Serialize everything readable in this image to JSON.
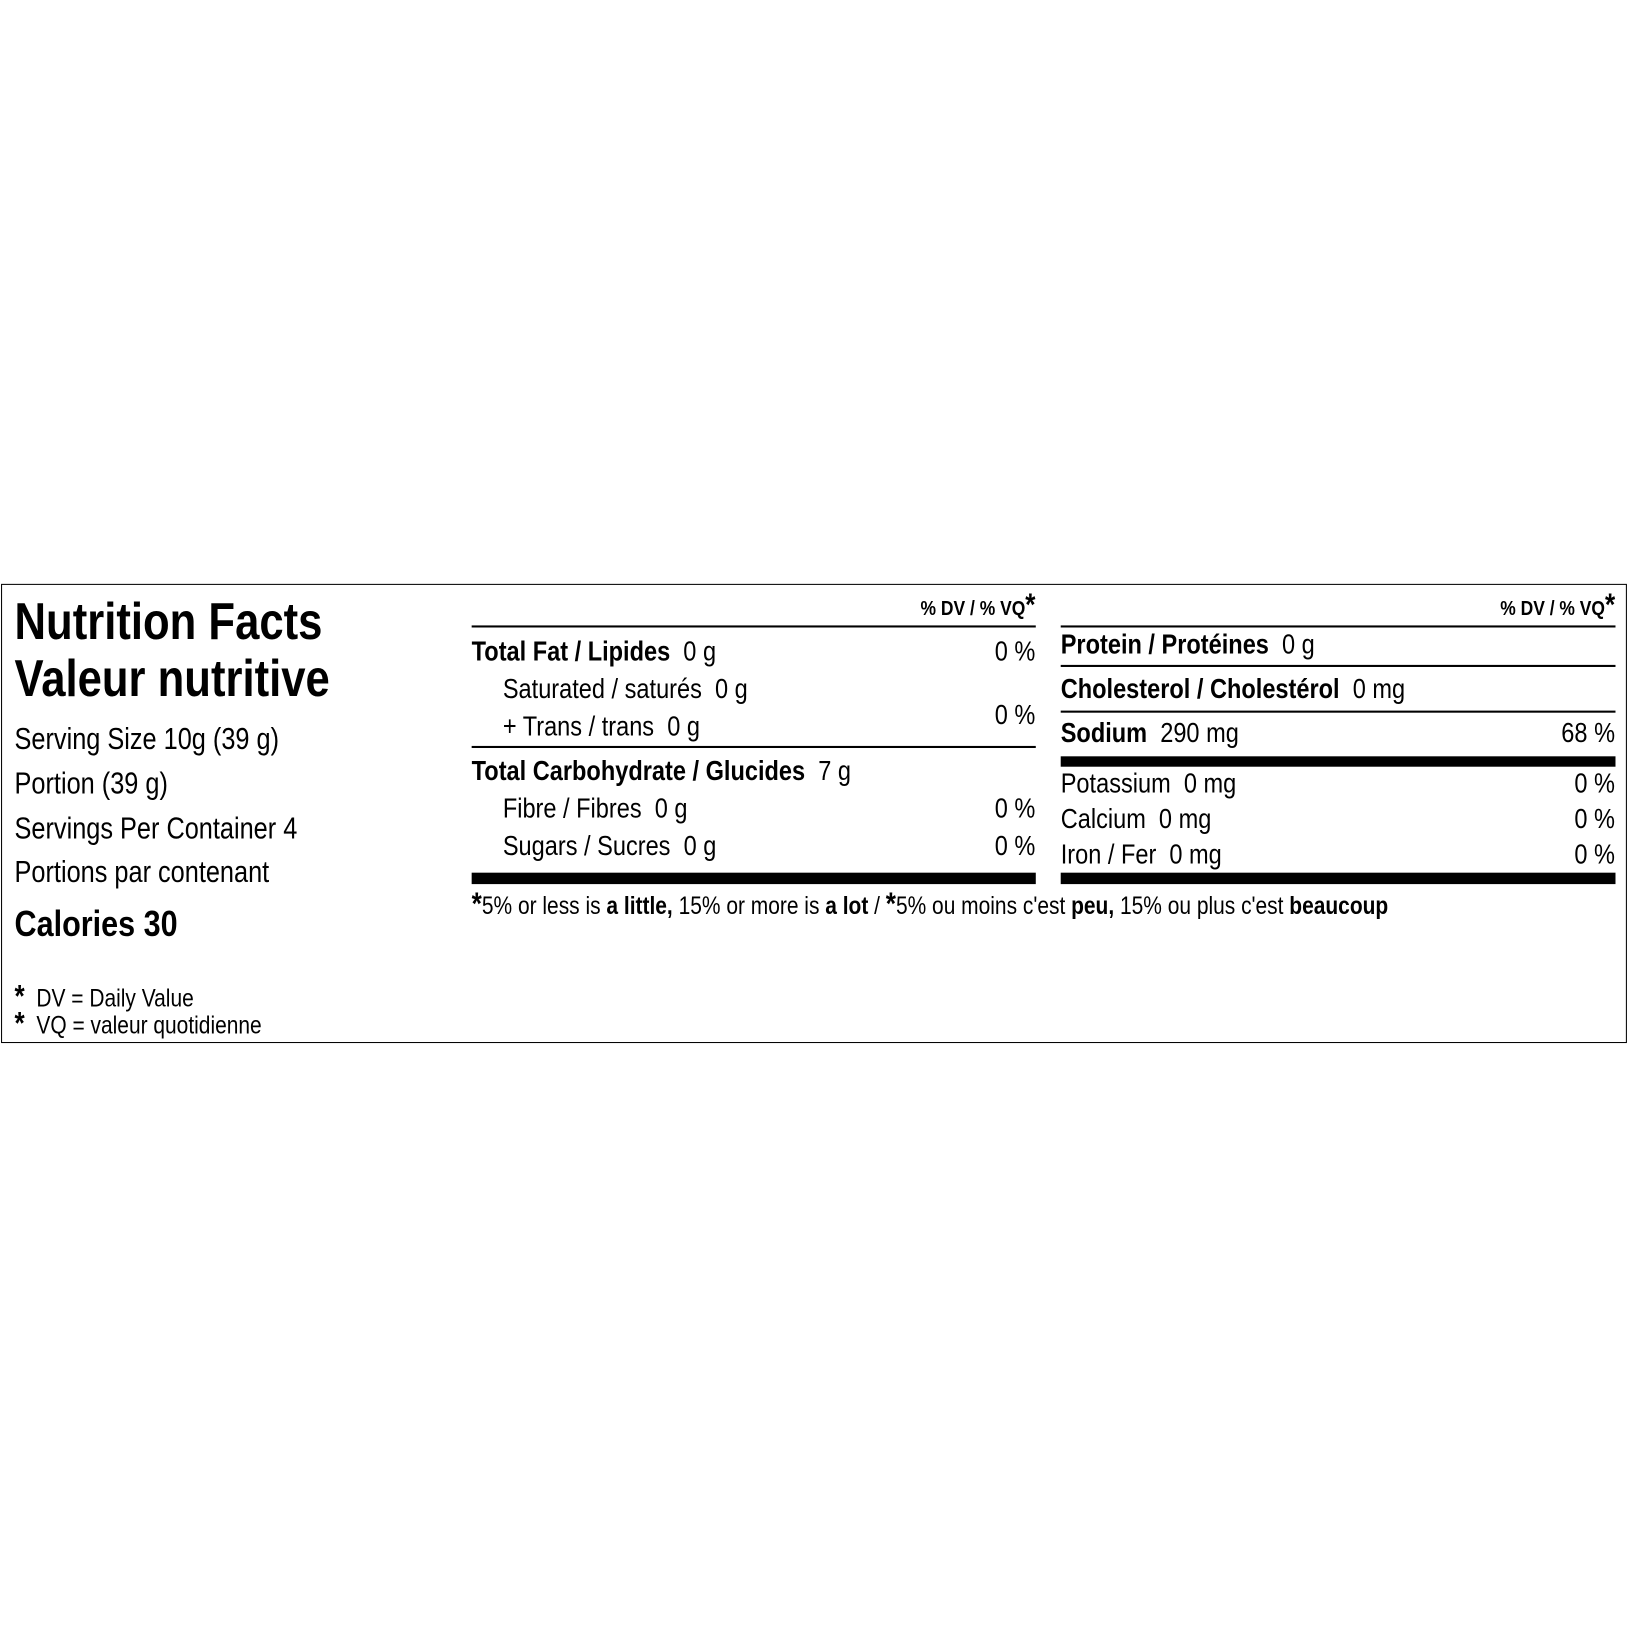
{
  "title_en": "Nutrition Facts",
  "title_fr": "Valeur nutritive",
  "serving_size": "Serving Size 10g (39 g)",
  "portion": "Portion  (39 g)",
  "servings_per_container": "Servings Per Container 4",
  "portions_par_contenant": "Portions par contenant",
  "calories_label": "Calories",
  "calories_value": "30",
  "dv_header": "% DV / % VQ",
  "asterisk": "*",
  "footnotes": [
    "DV = Daily Value",
    "VQ = valeur quotidienne"
  ],
  "middle": {
    "total_fat": {
      "label": "Total Fat / Lipides",
      "amount": "0 g",
      "dv": "0 %"
    },
    "saturated": {
      "label": "Saturated / saturés",
      "amount": "0 g"
    },
    "trans": {
      "label": "+ Trans / trans",
      "amount": "0 g"
    },
    "sat_trans_dv": "0 %",
    "total_carb": {
      "label": "Total Carbohydrate / Glucides",
      "amount": "7 g"
    },
    "fibre": {
      "label": "Fibre / Fibres",
      "amount": "0 g",
      "dv": "0 %"
    },
    "sugars": {
      "label": "Sugars / Sucres",
      "amount": "0 g",
      "dv": "0 %"
    }
  },
  "right": {
    "protein": {
      "label": "Protein / Protéines",
      "amount": "0 g"
    },
    "cholesterol": {
      "label": "Cholesterol / Cholestérol",
      "amount": "0 mg"
    },
    "sodium": {
      "label": "Sodium",
      "amount": "290 mg",
      "dv": "68 %"
    },
    "potassium": {
      "label": "Potassium",
      "amount": "0 mg",
      "dv": "0 %"
    },
    "calcium": {
      "label": "Calcium",
      "amount": "0 mg",
      "dv": "0 %"
    },
    "iron": {
      "label": "Iron / Fer",
      "amount": "0 mg",
      "dv": "0 %"
    }
  },
  "dv_note": {
    "p1": "5% or less is ",
    "b1": "a little,",
    "p2": " 15% or more is ",
    "b2": "a lot",
    "p3": " / ",
    "p4": "5% ou moins c'est ",
    "b3": "peu,",
    "p5": " 15% ou plus c'est ",
    "b4": "beaucoup"
  }
}
